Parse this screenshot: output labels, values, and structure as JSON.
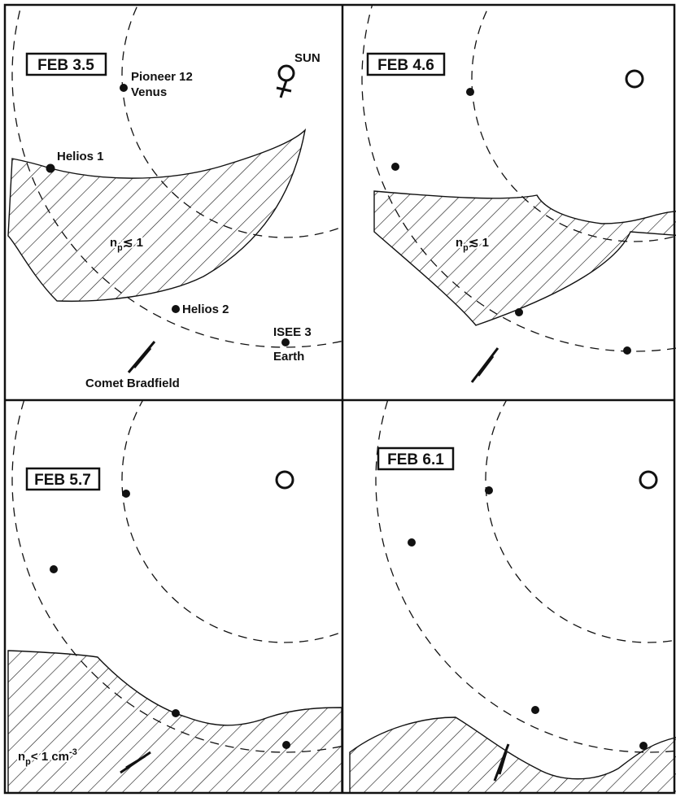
{
  "panels": [
    {
      "date": "FEB 3.5",
      "labels": {
        "sun": "SUN",
        "pioneer": "Pioneer 12",
        "venus": "Venus",
        "helios1": "Helios 1",
        "helios2": "Helios 2",
        "isee": "ISEE 3",
        "earth": "Earth",
        "comet": "Comet Bradfield"
      },
      "density": {
        "symbol": "n",
        "subscript": "p",
        "relation": "≲ 1"
      }
    },
    {
      "date": "FEB 4.6",
      "density": {
        "symbol": "n",
        "subscript": "p",
        "relation": "≲ 1"
      }
    },
    {
      "date": "FEB 5.7",
      "density": {
        "symbol": "n",
        "subscript": "p",
        "relation": "< 1 cm",
        "superscript": "-3"
      }
    },
    {
      "date": "FEB 6.1"
    }
  ]
}
